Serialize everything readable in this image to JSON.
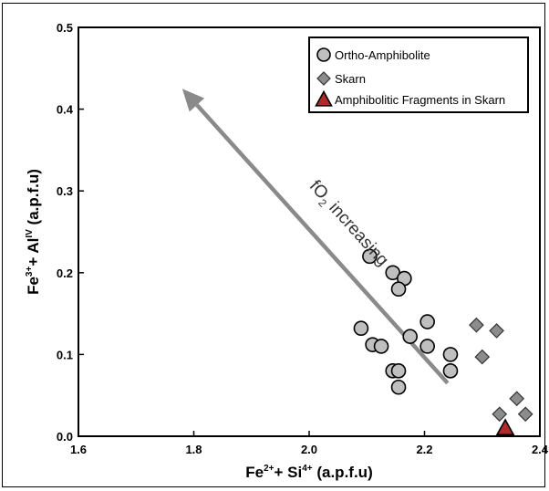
{
  "chart_data": {
    "type": "scatter",
    "xlabel": {
      "base1": "Fe",
      "sup1": "2+",
      "mid": "+ Si",
      "sup2": "4+",
      "tail": " (a.p.f.u)"
    },
    "ylabel": {
      "base1": "Fe",
      "sup1": "3+",
      "mid": "+ Al",
      "sup2": "IV",
      "tail": " (a.p.f.u)"
    },
    "xlim": [
      1.6,
      2.4
    ],
    "ylim": [
      0.0,
      0.5
    ],
    "x_ticks": [
      "1.6",
      "1.8",
      "2.0",
      "2.2",
      "2.4"
    ],
    "y_ticks": [
      "0.0",
      "0.1",
      "0.2",
      "0.3",
      "0.4",
      "0.5"
    ],
    "legend_position": "top-right",
    "series": [
      {
        "name": "Ortho-Amphibolite",
        "marker": "circle",
        "color": "#bfbfbf",
        "points": [
          [
            2.105,
            0.22
          ],
          [
            2.145,
            0.2
          ],
          [
            2.165,
            0.193
          ],
          [
            2.155,
            0.18
          ],
          [
            2.09,
            0.132
          ],
          [
            2.11,
            0.112
          ],
          [
            2.125,
            0.11
          ],
          [
            2.175,
            0.122
          ],
          [
            2.205,
            0.14
          ],
          [
            2.205,
            0.11
          ],
          [
            2.245,
            0.1
          ],
          [
            2.245,
            0.08
          ],
          [
            2.145,
            0.08
          ],
          [
            2.155,
            0.08
          ],
          [
            2.155,
            0.06
          ]
        ]
      },
      {
        "name": "Skarn",
        "marker": "diamond",
        "color": "#8c8c8c",
        "points": [
          [
            2.29,
            0.136
          ],
          [
            2.325,
            0.129
          ],
          [
            2.3,
            0.097
          ],
          [
            2.36,
            0.046
          ],
          [
            2.375,
            0.027
          ],
          [
            2.33,
            0.027
          ]
        ]
      },
      {
        "name": "Amphibolitic Fragments in Skarn",
        "marker": "triangle",
        "color": "#b02a2a",
        "points": [
          [
            2.34,
            0.01
          ]
        ]
      }
    ],
    "annotation": {
      "text_pre": "fO",
      "text_sub": "2",
      "text_post": " increasing",
      "arrow_from": [
        2.24,
        0.065
      ],
      "arrow_to": [
        1.78,
        0.425
      ]
    }
  }
}
